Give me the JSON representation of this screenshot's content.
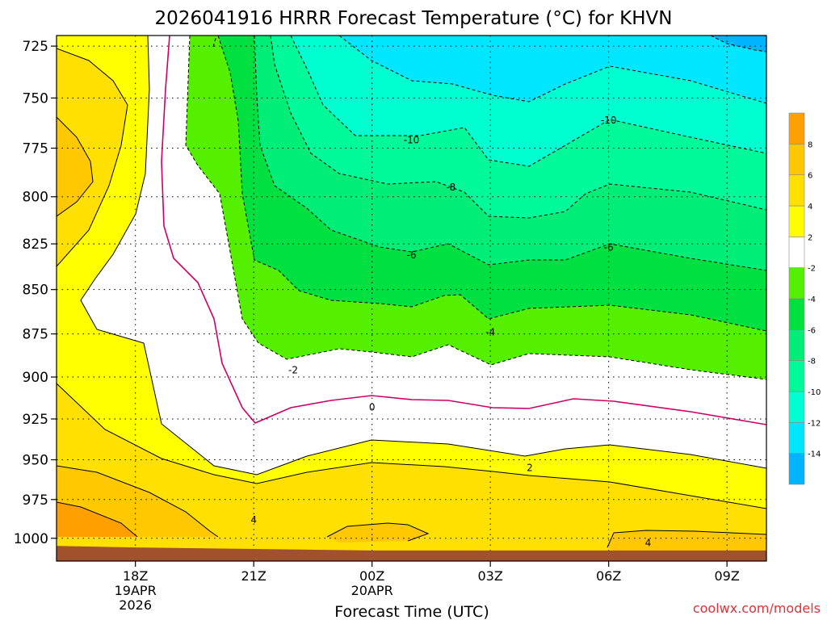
{
  "title": "2026041916 HRRR Forecast Temperature (°C) for KHVN",
  "credit": "coolwx.com/models",
  "chart_data": {
    "type": "heatmap",
    "title": "2026041916 HRRR Forecast Temperature (°C) for KHVN",
    "xlabel": "Forecast Time (UTC)",
    "ylabel": "",
    "xlim": [
      "2026-04-19T16:00Z",
      "2026-04-20T10:00Z"
    ],
    "ylim": [
      1015,
      720
    ],
    "y_scale": "log-pressure (hPa), reversed",
    "grid": true,
    "x_ticks": [
      {
        "t": "2026-04-19T18:00Z",
        "lines": [
          "18Z",
          "19APR",
          "2026"
        ]
      },
      {
        "t": "2026-04-19T21:00Z",
        "lines": [
          "21Z"
        ]
      },
      {
        "t": "2026-04-20T00:00Z",
        "lines": [
          "00Z",
          "20APR"
        ]
      },
      {
        "t": "2026-04-20T03:00Z",
        "lines": [
          "03Z"
        ]
      },
      {
        "t": "2026-04-20T06:00Z",
        "lines": [
          "06Z"
        ]
      },
      {
        "t": "2026-04-20T09:00Z",
        "lines": [
          "09Z"
        ]
      }
    ],
    "y_ticks": [
      725,
      750,
      775,
      800,
      825,
      850,
      875,
      900,
      925,
      950,
      975,
      1000
    ],
    "colorbar": {
      "boundaries": [
        -16,
        -14,
        -12,
        -10,
        -8,
        -6,
        -4,
        -2,
        2,
        4,
        6,
        8,
        10
      ],
      "tick_labels": [
        "-14",
        "-12",
        "-10",
        "-8",
        "-6",
        "-4",
        "-2",
        "2",
        "4",
        "6",
        "8"
      ],
      "colors": [
        "#00b4ff",
        "#00e6ff",
        "#00ffd0",
        "#00fa9a",
        "#00ee77",
        "#00e040",
        "#55f000",
        "#ffffff",
        "#ffff00",
        "#ffe000",
        "#ffc800",
        "#ffa000"
      ]
    },
    "surface_color": "#a0522d",
    "surface_pressure_hpa": [
      1005,
      1006,
      1007,
      1008,
      1008,
      1008,
      1008
    ],
    "surface_pressure_times": [
      "2026-04-19T16:00Z",
      "2026-04-19T18:00Z",
      "2026-04-19T21:00Z",
      "2026-04-20T00:00Z",
      "2026-04-20T03:00Z",
      "2026-04-20T06:00Z",
      "2026-04-20T10:00Z"
    ],
    "contour_labels": [
      {
        "text": "-10",
        "t": "2026-04-20T01:00Z",
        "p": 771
      },
      {
        "text": "-10",
        "t": "2026-04-20T06:00Z",
        "p": 761
      },
      {
        "text": "-8",
        "t": "2026-04-20T02:00Z",
        "p": 795
      },
      {
        "text": "-6",
        "t": "2026-04-20T01:00Z",
        "p": 831
      },
      {
        "text": "-6",
        "t": "2026-04-20T06:00Z",
        "p": 827
      },
      {
        "text": "-4",
        "t": "2026-04-20T03:00Z",
        "p": 874
      },
      {
        "text": "-2",
        "t": "2026-04-19T22:00Z",
        "p": 896
      },
      {
        "text": "0",
        "t": "2026-04-20T00:00Z",
        "p": 918
      },
      {
        "text": "2",
        "t": "2026-04-20T04:00Z",
        "p": 955
      },
      {
        "text": "4",
        "t": "2026-04-19T21:00Z",
        "p": 988
      },
      {
        "text": "4",
        "t": "2026-04-20T07:00Z",
        "p": 1003
      }
    ]
  }
}
